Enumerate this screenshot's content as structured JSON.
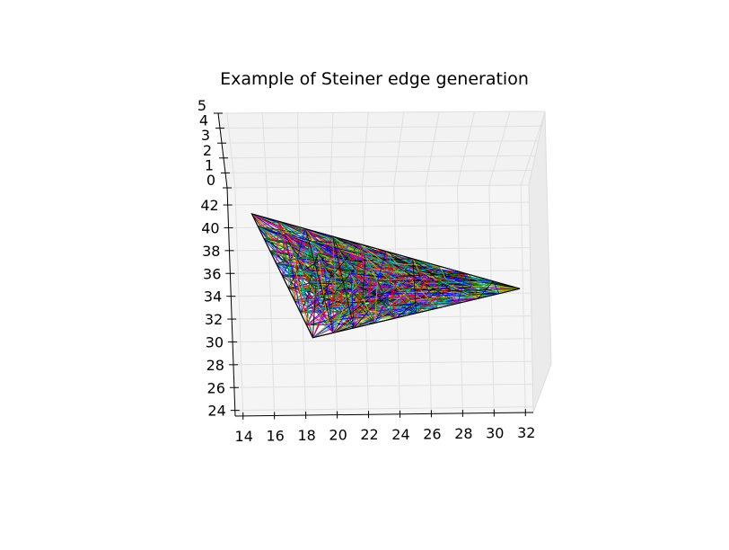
{
  "chart_data": {
    "type": "line",
    "title": "Example of Steiner edge generation",
    "xlabel": "",
    "ylabel": "",
    "zlabel": "",
    "projection": "3d",
    "grid": true,
    "xlim": [
      13.5,
      32.5
    ],
    "ylim": [
      23.5,
      43.5
    ],
    "zlim": [
      0,
      5
    ],
    "x_ticks": [
      "14",
      "16",
      "18",
      "20",
      "22",
      "24",
      "26",
      "28",
      "30",
      "32"
    ],
    "y_ticks": [
      "24",
      "26",
      "28",
      "30",
      "32",
      "34",
      "36",
      "38",
      "40",
      "42"
    ],
    "z_ticks": [
      "0",
      "1",
      "2",
      "3",
      "4",
      "5"
    ],
    "triangle": {
      "vertices": [
        {
          "x": 15.0,
          "y": 41.2,
          "z": 0
        },
        {
          "x": 31.8,
          "y": 34.4,
          "z": 0
        },
        {
          "x": 18.6,
          "y": 30.3,
          "z": 0
        }
      ],
      "grid_divisions": 10
    },
    "edge_colors": [
      "#0000ff",
      "#008000",
      "#ff0000",
      "#00bfbf",
      "#bf00bf",
      "#bfbf00",
      "#000000"
    ]
  }
}
